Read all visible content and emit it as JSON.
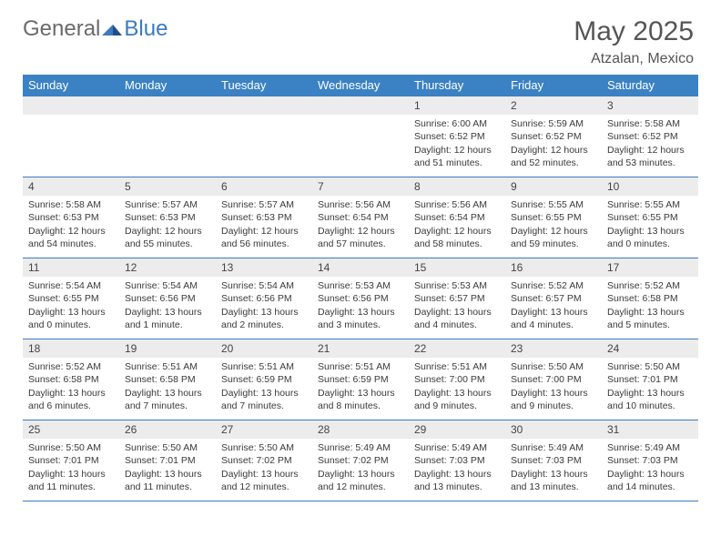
{
  "logo": {
    "text1": "General",
    "text2": "Blue"
  },
  "header": {
    "title": "May 2025",
    "location": "Atzalan, Mexico"
  },
  "weekdays": [
    "Sunday",
    "Monday",
    "Tuesday",
    "Wednesday",
    "Thursday",
    "Friday",
    "Saturday"
  ],
  "colors": {
    "header_bar": "#3b82c4",
    "brand_blue": "#3b7bbf",
    "row_border": "#3b7bbf",
    "daynum_bg": "#ececec",
    "text": "#333333"
  },
  "weeks": [
    [
      null,
      null,
      null,
      null,
      {
        "n": "1",
        "sunrise": "6:00 AM",
        "sunset": "6:52 PM",
        "daylight": "12 hours and 51 minutes."
      },
      {
        "n": "2",
        "sunrise": "5:59 AM",
        "sunset": "6:52 PM",
        "daylight": "12 hours and 52 minutes."
      },
      {
        "n": "3",
        "sunrise": "5:58 AM",
        "sunset": "6:52 PM",
        "daylight": "12 hours and 53 minutes."
      }
    ],
    [
      {
        "n": "4",
        "sunrise": "5:58 AM",
        "sunset": "6:53 PM",
        "daylight": "12 hours and 54 minutes."
      },
      {
        "n": "5",
        "sunrise": "5:57 AM",
        "sunset": "6:53 PM",
        "daylight": "12 hours and 55 minutes."
      },
      {
        "n": "6",
        "sunrise": "5:57 AM",
        "sunset": "6:53 PM",
        "daylight": "12 hours and 56 minutes."
      },
      {
        "n": "7",
        "sunrise": "5:56 AM",
        "sunset": "6:54 PM",
        "daylight": "12 hours and 57 minutes."
      },
      {
        "n": "8",
        "sunrise": "5:56 AM",
        "sunset": "6:54 PM",
        "daylight": "12 hours and 58 minutes."
      },
      {
        "n": "9",
        "sunrise": "5:55 AM",
        "sunset": "6:55 PM",
        "daylight": "12 hours and 59 minutes."
      },
      {
        "n": "10",
        "sunrise": "5:55 AM",
        "sunset": "6:55 PM",
        "daylight": "13 hours and 0 minutes."
      }
    ],
    [
      {
        "n": "11",
        "sunrise": "5:54 AM",
        "sunset": "6:55 PM",
        "daylight": "13 hours and 0 minutes."
      },
      {
        "n": "12",
        "sunrise": "5:54 AM",
        "sunset": "6:56 PM",
        "daylight": "13 hours and 1 minute."
      },
      {
        "n": "13",
        "sunrise": "5:54 AM",
        "sunset": "6:56 PM",
        "daylight": "13 hours and 2 minutes."
      },
      {
        "n": "14",
        "sunrise": "5:53 AM",
        "sunset": "6:56 PM",
        "daylight": "13 hours and 3 minutes."
      },
      {
        "n": "15",
        "sunrise": "5:53 AM",
        "sunset": "6:57 PM",
        "daylight": "13 hours and 4 minutes."
      },
      {
        "n": "16",
        "sunrise": "5:52 AM",
        "sunset": "6:57 PM",
        "daylight": "13 hours and 4 minutes."
      },
      {
        "n": "17",
        "sunrise": "5:52 AM",
        "sunset": "6:58 PM",
        "daylight": "13 hours and 5 minutes."
      }
    ],
    [
      {
        "n": "18",
        "sunrise": "5:52 AM",
        "sunset": "6:58 PM",
        "daylight": "13 hours and 6 minutes."
      },
      {
        "n": "19",
        "sunrise": "5:51 AM",
        "sunset": "6:58 PM",
        "daylight": "13 hours and 7 minutes."
      },
      {
        "n": "20",
        "sunrise": "5:51 AM",
        "sunset": "6:59 PM",
        "daylight": "13 hours and 7 minutes."
      },
      {
        "n": "21",
        "sunrise": "5:51 AM",
        "sunset": "6:59 PM",
        "daylight": "13 hours and 8 minutes."
      },
      {
        "n": "22",
        "sunrise": "5:51 AM",
        "sunset": "7:00 PM",
        "daylight": "13 hours and 9 minutes."
      },
      {
        "n": "23",
        "sunrise": "5:50 AM",
        "sunset": "7:00 PM",
        "daylight": "13 hours and 9 minutes."
      },
      {
        "n": "24",
        "sunrise": "5:50 AM",
        "sunset": "7:01 PM",
        "daylight": "13 hours and 10 minutes."
      }
    ],
    [
      {
        "n": "25",
        "sunrise": "5:50 AM",
        "sunset": "7:01 PM",
        "daylight": "13 hours and 11 minutes."
      },
      {
        "n": "26",
        "sunrise": "5:50 AM",
        "sunset": "7:01 PM",
        "daylight": "13 hours and 11 minutes."
      },
      {
        "n": "27",
        "sunrise": "5:50 AM",
        "sunset": "7:02 PM",
        "daylight": "13 hours and 12 minutes."
      },
      {
        "n": "28",
        "sunrise": "5:49 AM",
        "sunset": "7:02 PM",
        "daylight": "13 hours and 12 minutes."
      },
      {
        "n": "29",
        "sunrise": "5:49 AM",
        "sunset": "7:03 PM",
        "daylight": "13 hours and 13 minutes."
      },
      {
        "n": "30",
        "sunrise": "5:49 AM",
        "sunset": "7:03 PM",
        "daylight": "13 hours and 13 minutes."
      },
      {
        "n": "31",
        "sunrise": "5:49 AM",
        "sunset": "7:03 PM",
        "daylight": "13 hours and 14 minutes."
      }
    ]
  ]
}
